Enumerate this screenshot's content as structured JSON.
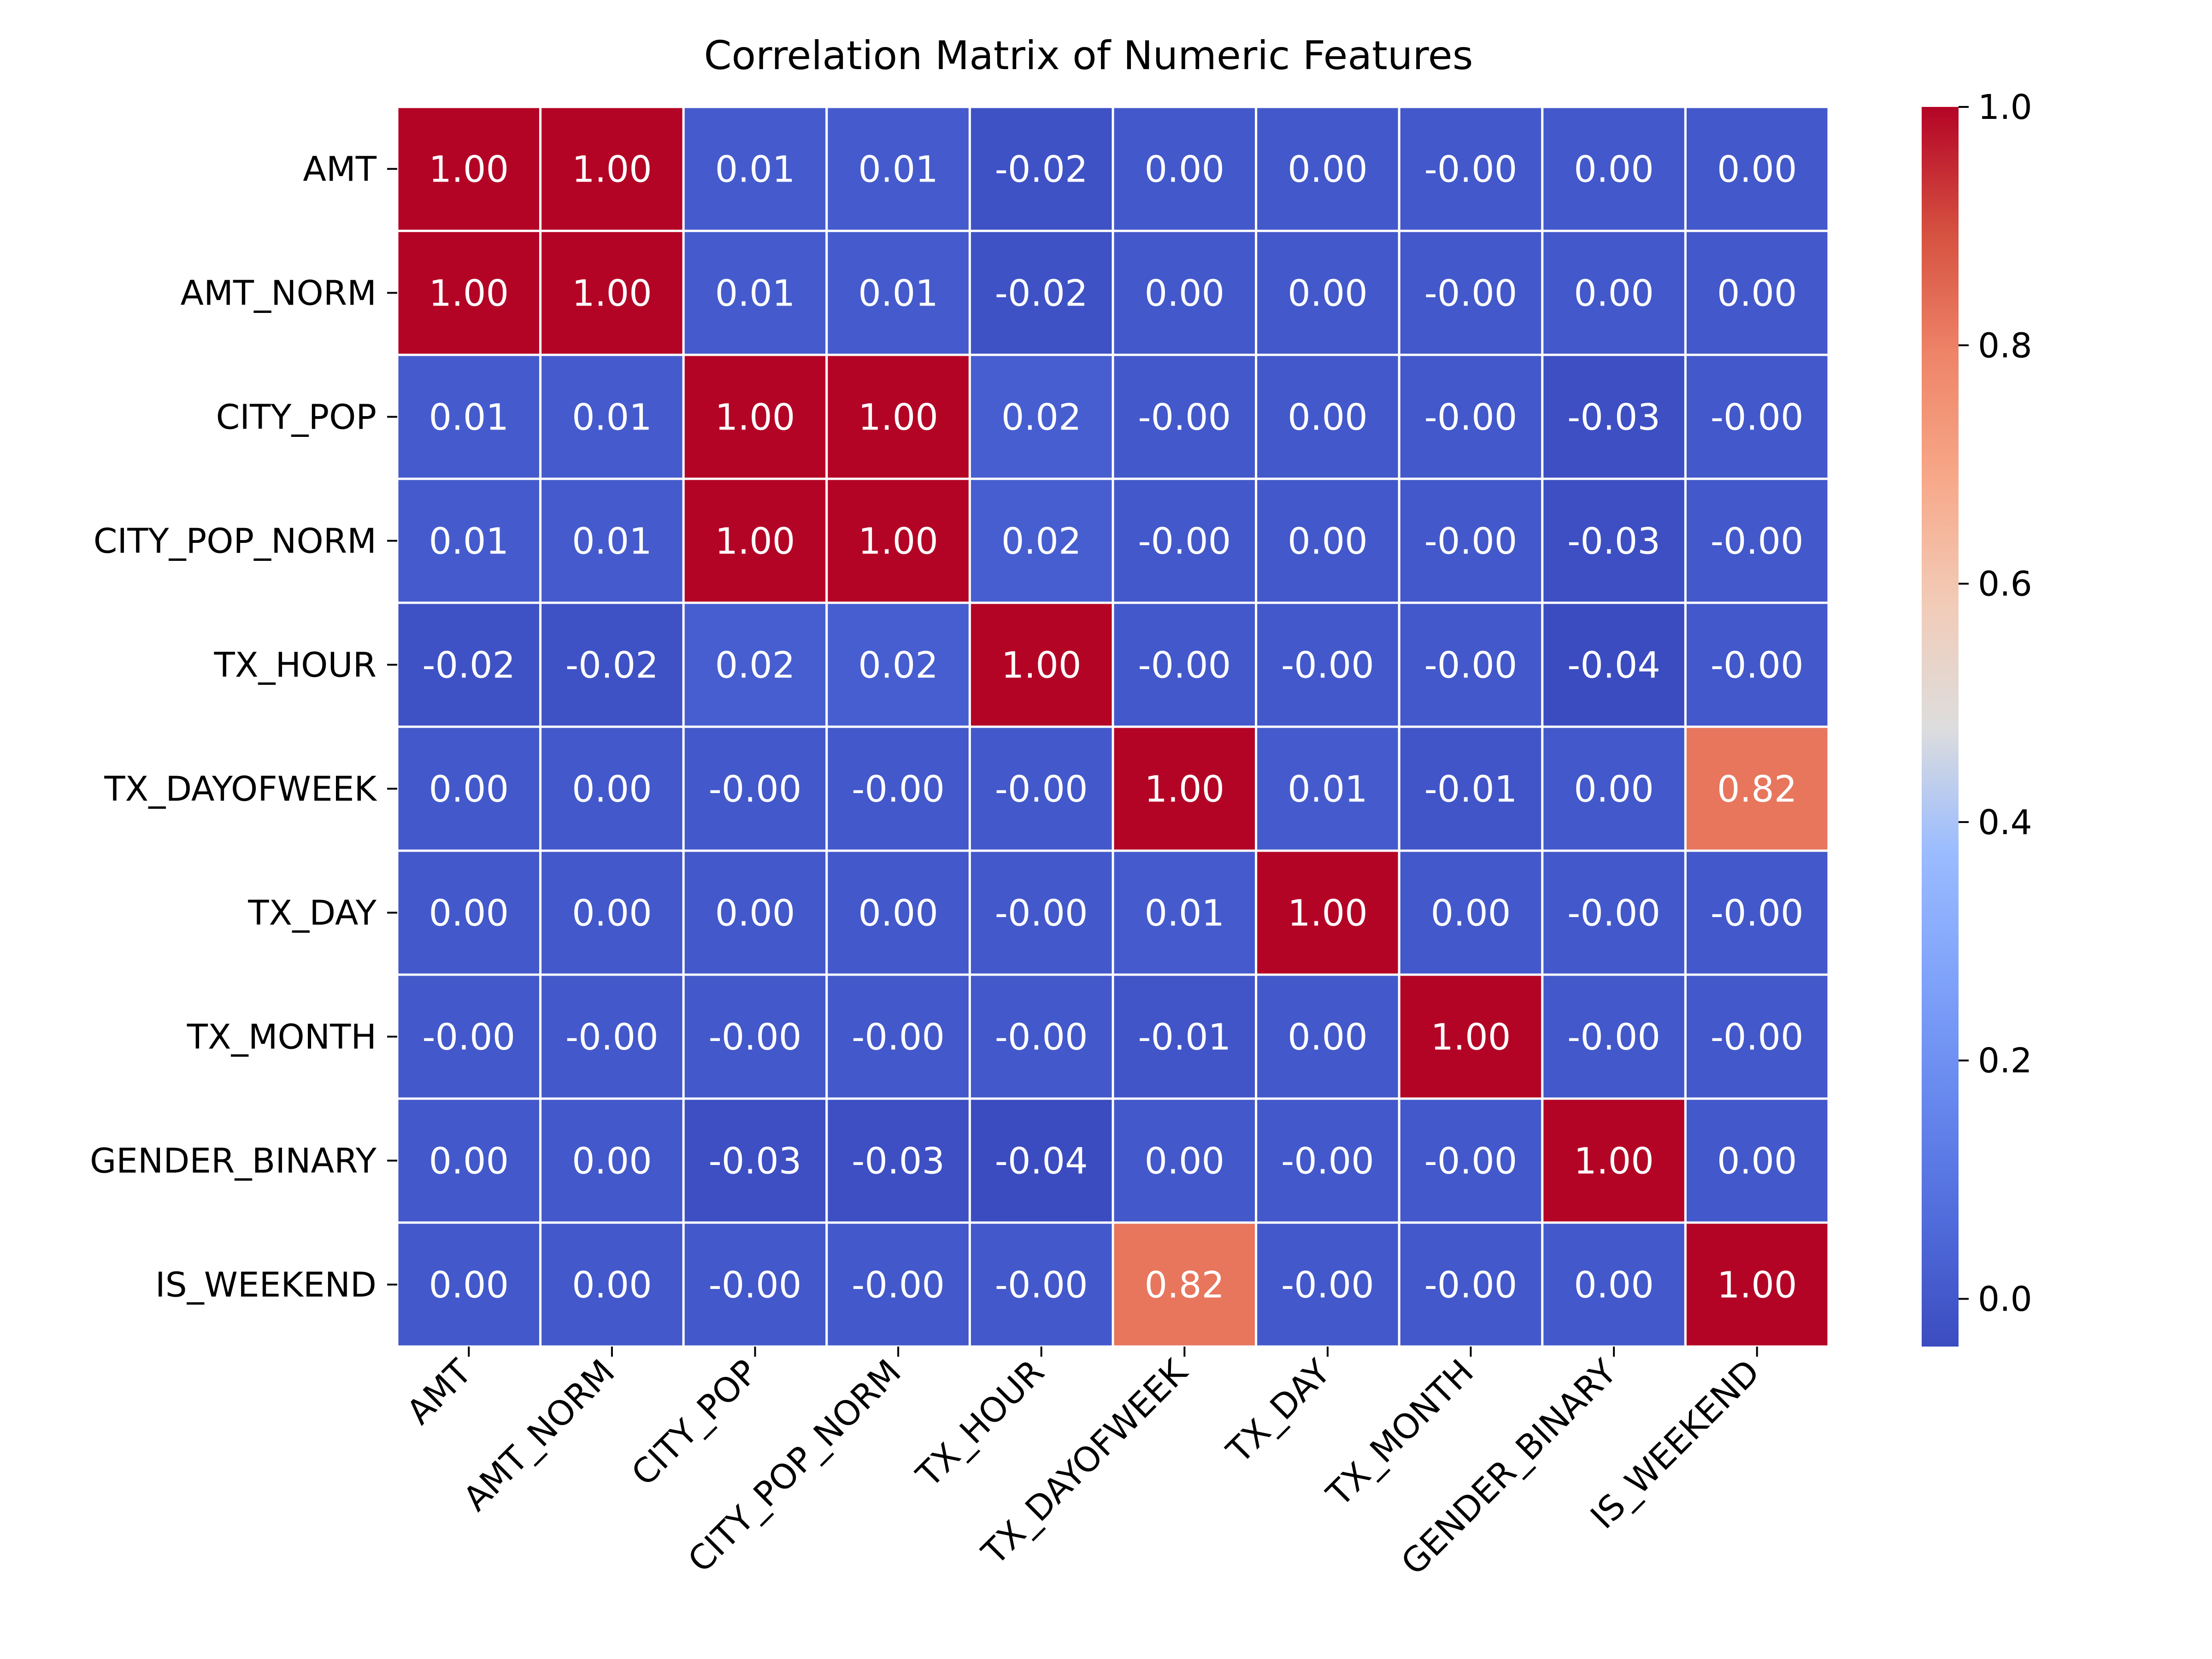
{
  "chart_data": {
    "type": "heatmap",
    "title": "Correlation Matrix of Numeric Features",
    "rows": [
      "AMT",
      "AMT_NORM",
      "CITY_POP",
      "CITY_POP_NORM",
      "TX_HOUR",
      "TX_DAYOFWEEK",
      "TX_DAY",
      "TX_MONTH",
      "GENDER_BINARY",
      "IS_WEEKEND"
    ],
    "columns": [
      "AMT",
      "AMT_NORM",
      "CITY_POP",
      "CITY_POP_NORM",
      "TX_HOUR",
      "TX_DAYOFWEEK",
      "TX_DAY",
      "TX_MONTH",
      "GENDER_BINARY",
      "IS_WEEKEND"
    ],
    "values": [
      [
        1.0,
        1.0,
        0.01,
        0.01,
        -0.02,
        0.0,
        0.0,
        -0.0,
        0.0,
        0.0
      ],
      [
        1.0,
        1.0,
        0.01,
        0.01,
        -0.02,
        0.0,
        0.0,
        -0.0,
        0.0,
        0.0
      ],
      [
        0.01,
        0.01,
        1.0,
        1.0,
        0.02,
        -0.0,
        0.0,
        -0.0,
        -0.03,
        -0.0
      ],
      [
        0.01,
        0.01,
        1.0,
        1.0,
        0.02,
        -0.0,
        0.0,
        -0.0,
        -0.03,
        -0.0
      ],
      [
        -0.02,
        -0.02,
        0.02,
        0.02,
        1.0,
        -0.0,
        -0.0,
        -0.0,
        -0.04,
        -0.0
      ],
      [
        0.0,
        0.0,
        -0.0,
        -0.0,
        -0.0,
        1.0,
        0.01,
        -0.01,
        0.0,
        0.82
      ],
      [
        0.0,
        0.0,
        0.0,
        0.0,
        -0.0,
        0.01,
        1.0,
        0.0,
        -0.0,
        -0.0
      ],
      [
        -0.0,
        -0.0,
        -0.0,
        -0.0,
        -0.0,
        -0.01,
        0.0,
        1.0,
        -0.0,
        -0.0
      ],
      [
        0.0,
        0.0,
        -0.03,
        -0.03,
        -0.04,
        0.0,
        -0.0,
        -0.0,
        1.0,
        0.0
      ],
      [
        0.0,
        0.0,
        -0.0,
        -0.0,
        -0.0,
        0.82,
        -0.0,
        -0.0,
        0.0,
        1.0
      ]
    ],
    "labels": [
      [
        "1.00",
        "1.00",
        "0.01",
        "0.01",
        "-0.02",
        "0.00",
        "0.00",
        "-0.00",
        "0.00",
        "0.00"
      ],
      [
        "1.00",
        "1.00",
        "0.01",
        "0.01",
        "-0.02",
        "0.00",
        "0.00",
        "-0.00",
        "0.00",
        "0.00"
      ],
      [
        "0.01",
        "0.01",
        "1.00",
        "1.00",
        "0.02",
        "-0.00",
        "0.00",
        "-0.00",
        "-0.03",
        "-0.00"
      ],
      [
        "0.01",
        "0.01",
        "1.00",
        "1.00",
        "0.02",
        "-0.00",
        "0.00",
        "-0.00",
        "-0.03",
        "-0.00"
      ],
      [
        "-0.02",
        "-0.02",
        "0.02",
        "0.02",
        "1.00",
        "-0.00",
        "-0.00",
        "-0.00",
        "-0.04",
        "-0.00"
      ],
      [
        "0.00",
        "0.00",
        "-0.00",
        "-0.00",
        "-0.00",
        "1.00",
        "0.01",
        "-0.01",
        "0.00",
        "0.82"
      ],
      [
        "0.00",
        "0.00",
        "0.00",
        "0.00",
        "-0.00",
        "0.01",
        "1.00",
        "0.00",
        "-0.00",
        "-0.00"
      ],
      [
        "-0.00",
        "-0.00",
        "-0.00",
        "-0.00",
        "-0.00",
        "-0.01",
        "0.00",
        "1.00",
        "-0.00",
        "-0.00"
      ],
      [
        "0.00",
        "0.00",
        "-0.03",
        "-0.03",
        "-0.04",
        "0.00",
        "-0.00",
        "-0.00",
        "1.00",
        "0.00"
      ],
      [
        "0.00",
        "0.00",
        "-0.00",
        "-0.00",
        "-0.00",
        "0.82",
        "-0.00",
        "-0.00",
        "0.00",
        "1.00"
      ]
    ],
    "colormap": "coolwarm",
    "colorbar": {
      "range": [
        -0.04,
        1.0
      ],
      "ticks": [
        "0.0",
        "0.2",
        "0.4",
        "0.6",
        "0.8",
        "1.0"
      ],
      "tick_values": [
        0.0,
        0.2,
        0.4,
        0.6,
        0.8,
        1.0
      ]
    },
    "grid": "white cell borders",
    "xtick_rotation": "45 degrees"
  }
}
